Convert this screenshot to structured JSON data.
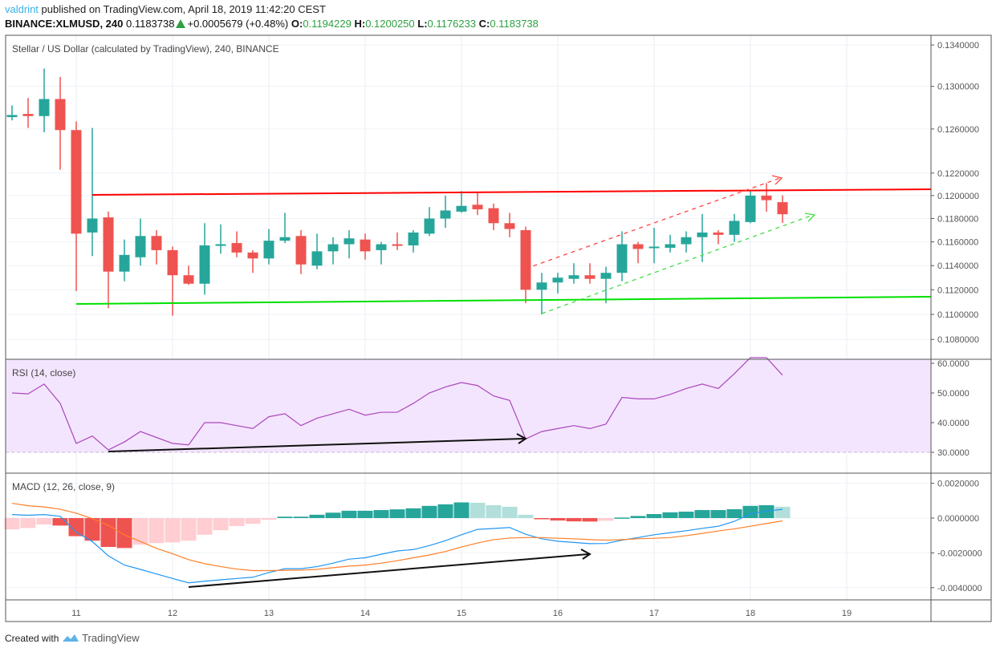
{
  "header": {
    "author": "valdrint",
    "published": "published on TradingView.com, April 18, 2019 11:42:20 CEST",
    "symbol": "BINANCE:XLMUSD, 240",
    "last": "0.1183738",
    "change": "+0.0005679 (+0.48%)",
    "o_label": "O:",
    "o": "0.1194229",
    "h_label": "H:",
    "h": "0.1200250",
    "l_label": "L:",
    "l": "0.1176233",
    "c_label": "C:",
    "c": "0.1183738"
  },
  "price_pane": {
    "title": "Stellar / US Dollar (calculated by TradingView), 240, BINANCE"
  },
  "rsi_pane": {
    "title": "RSI (14, close)"
  },
  "macd_pane": {
    "title": "MACD (12, 26, close, 9)"
  },
  "footer": {
    "created": "Created with",
    "brand": "TradingView"
  },
  "colors": {
    "up": "#26a69a",
    "down": "#ef5350",
    "up_light": "#b2dfdb",
    "down_light": "#ffcdd2",
    "resistance": "#ff0000",
    "support": "#00e000",
    "rsi": "#ab47bc",
    "rsi_band": "#f3e5fd",
    "macd": "#2196f3",
    "signal": "#ff7f27"
  },
  "chart_data": [
    {
      "type": "candlestick",
      "title": "Stellar / US Dollar (calculated by TradingView), 240, BINANCE",
      "scale": "log",
      "interval_hours": 4,
      "x_tick_labels": [
        "11",
        "12",
        "13",
        "14",
        "15",
        "16",
        "17",
        "18",
        "19"
      ],
      "y_tick_labels": [
        "0.1340000",
        "0.1300000",
        "0.1260000",
        "0.1220000",
        "0.1200000",
        "0.1180000",
        "0.1160000",
        "0.1140000",
        "0.1120000",
        "0.1100000",
        "0.1080000"
      ],
      "y_ticks": [
        0.134,
        0.13,
        0.126,
        0.122,
        0.12,
        0.118,
        0.116,
        0.114,
        0.112,
        0.11,
        0.108
      ],
      "ohlc": [
        [
          0.1271,
          0.1282,
          0.1268,
          0.1273
        ],
        [
          0.1274,
          0.1289,
          0.1261,
          0.1272
        ],
        [
          0.1272,
          0.1317,
          0.1257,
          0.1288
        ],
        [
          0.1288,
          0.1309,
          0.1223,
          0.1259
        ],
        [
          0.1259,
          0.1267,
          0.1119,
          0.1167
        ],
        [
          0.1168,
          0.1261,
          0.1148,
          0.118
        ],
        [
          0.1181,
          0.1186,
          0.1105,
          0.1135
        ],
        [
          0.1135,
          0.1162,
          0.1127,
          0.1149
        ],
        [
          0.1147,
          0.118,
          0.114,
          0.1165
        ],
        [
          0.1165,
          0.117,
          0.1141,
          0.1153
        ],
        [
          0.1153,
          0.1156,
          0.1099,
          0.1132
        ],
        [
          0.1132,
          0.114,
          0.1124,
          0.1125
        ],
        [
          0.1125,
          0.1176,
          0.1116,
          0.1157
        ],
        [
          0.1157,
          0.1175,
          0.115,
          0.1158
        ],
        [
          0.1159,
          0.1169,
          0.1147,
          0.1151
        ],
        [
          0.1151,
          0.1153,
          0.1134,
          0.1146
        ],
        [
          0.1146,
          0.1171,
          0.1141,
          0.1161
        ],
        [
          0.1161,
          0.1185,
          0.1159,
          0.1164
        ],
        [
          0.1165,
          0.117,
          0.1133,
          0.1141
        ],
        [
          0.114,
          0.1167,
          0.1137,
          0.1152
        ],
        [
          0.1152,
          0.1164,
          0.1141,
          0.1158
        ],
        [
          0.1158,
          0.117,
          0.1146,
          0.1163
        ],
        [
          0.1162,
          0.1167,
          0.1145,
          0.1152
        ],
        [
          0.1153,
          0.116,
          0.1141,
          0.1158
        ],
        [
          0.1158,
          0.1168,
          0.1153,
          0.1157
        ],
        [
          0.1157,
          0.117,
          0.1151,
          0.1168
        ],
        [
          0.1167,
          0.119,
          0.1165,
          0.118
        ],
        [
          0.118,
          0.12,
          0.1172,
          0.1187
        ],
        [
          0.1186,
          0.1204,
          0.1185,
          0.1191
        ],
        [
          0.1192,
          0.1203,
          0.1183,
          0.1188
        ],
        [
          0.1189,
          0.1193,
          0.117,
          0.1176
        ],
        [
          0.1176,
          0.1185,
          0.1164,
          0.1171
        ],
        [
          0.117,
          0.1173,
          0.1109,
          0.112
        ],
        [
          0.112,
          0.1134,
          0.11,
          0.1126
        ],
        [
          0.1126,
          0.1134,
          0.1117,
          0.113
        ],
        [
          0.1129,
          0.1142,
          0.1125,
          0.1132
        ],
        [
          0.1132,
          0.1142,
          0.1125,
          0.1129
        ],
        [
          0.1129,
          0.1139,
          0.1109,
          0.1134
        ],
        [
          0.1134,
          0.1169,
          0.1127,
          0.1158
        ],
        [
          0.1158,
          0.116,
          0.1142,
          0.1154
        ],
        [
          0.1155,
          0.1172,
          0.1142,
          0.1156
        ],
        [
          0.1155,
          0.1166,
          0.1151,
          0.1158
        ],
        [
          0.1158,
          0.1169,
          0.1151,
          0.1164
        ],
        [
          0.1164,
          0.1184,
          0.1143,
          0.1168
        ],
        [
          0.1168,
          0.117,
          0.1158,
          0.1166
        ],
        [
          0.1166,
          0.1184,
          0.116,
          0.1178
        ],
        [
          0.1177,
          0.1204,
          0.1176,
          0.12
        ],
        [
          0.12,
          0.1211,
          0.1186,
          0.1196
        ],
        [
          0.1194229,
          0.120025,
          0.1176233,
          0.1183738
        ]
      ],
      "annotations": {
        "resistance_line": [
          0.12,
          0.1205
        ],
        "support_line": [
          0.1108,
          0.1114
        ],
        "rising_channel_upper_dashed": [
          0.1137,
          0.1213
        ],
        "rising_channel_lower_dashed": [
          0.11,
          0.1183
        ]
      }
    },
    {
      "type": "line",
      "title": "RSI (14, close)",
      "y_tick_labels": [
        "60.0000",
        "50.0000",
        "40.0000",
        "30.0000"
      ],
      "y_ticks": [
        60,
        50,
        40,
        30
      ],
      "band": [
        30,
        70
      ],
      "values": [
        50,
        49.7,
        53,
        46.5,
        33,
        35.5,
        30.8,
        33.5,
        37,
        35,
        33,
        32.5,
        40,
        40,
        39,
        38,
        42,
        43,
        39,
        41.5,
        43,
        44.5,
        42.5,
        43.5,
        43.5,
        46.5,
        50,
        52,
        53.5,
        52.5,
        49,
        47.5,
        34.5,
        37,
        38,
        39,
        38,
        39.5,
        48.5,
        48,
        48,
        49.5,
        51.5,
        53,
        51.5,
        56.5,
        63,
        63,
        56
      ],
      "annotations": {
        "divergence_arrow": [
          30.8,
          35.2
        ]
      }
    },
    {
      "type": "bar+line",
      "title": "MACD (12, 26, close, 9)",
      "y_tick_labels": [
        "0.0020000",
        "0.0000000",
        "-0.0020000",
        "-0.0040000"
      ],
      "y_ticks": [
        0.002,
        0,
        -0.002,
        -0.004
      ],
      "histogram": [
        -0.00065,
        -0.00057,
        -0.00037,
        -0.00043,
        -0.00104,
        -0.0013,
        -0.00166,
        -0.00172,
        -0.00153,
        -0.00144,
        -0.0014,
        -0.0013,
        -0.00096,
        -0.0007,
        -0.00046,
        -0.00033,
        -0.0001,
        8e-05,
        8e-05,
        0.00019,
        0.00031,
        0.00042,
        0.00042,
        0.00046,
        0.0005,
        0.00056,
        0.0007,
        0.00079,
        0.0009,
        0.00088,
        0.00074,
        0.00065,
        0.00019,
        -4e-05,
        -0.00014,
        -0.00019,
        -0.0002,
        -0.00016,
        3e-05,
        0.00012,
        0.00023,
        0.00033,
        0.00037,
        0.00046,
        0.00046,
        0.00051,
        0.0007,
        0.00074,
        0.00065
      ],
      "macd": [
        0.0002,
        0.00016,
        0.0002,
        0.0001,
        -0.00081,
        -0.00135,
        -0.00217,
        -0.0027,
        -0.00295,
        -0.00321,
        -0.00347,
        -0.00372,
        -0.00363,
        -0.00355,
        -0.00347,
        -0.0034,
        -0.00313,
        -0.00291,
        -0.00291,
        -0.00279,
        -0.00259,
        -0.00236,
        -0.00228,
        -0.00208,
        -0.00189,
        -0.00181,
        -0.00158,
        -0.0013,
        -0.00096,
        -0.00065,
        -0.0006,
        -0.00054,
        -0.00093,
        -0.00119,
        -0.00133,
        -0.0014,
        -0.00147,
        -0.00146,
        -0.00127,
        -0.00112,
        -0.00096,
        -0.00084,
        -0.00073,
        -0.00059,
        -0.00047,
        -0.00019,
        0.00025,
        0.0004,
        0.0005
      ],
      "signal": [
        0.00085,
        0.00071,
        0.00064,
        0.00051,
        0.00028,
        -3e-05,
        -0.00042,
        -0.00096,
        -0.00135,
        -0.00174,
        -0.00205,
        -0.00239,
        -0.00262,
        -0.00279,
        -0.00293,
        -0.00302,
        -0.00302,
        -0.003,
        -0.00299,
        -0.00295,
        -0.00285,
        -0.00276,
        -0.0027,
        -0.00259,
        -0.00245,
        -0.00228,
        -0.00212,
        -0.00192,
        -0.00166,
        -0.00143,
        -0.00124,
        -0.00115,
        -0.00112,
        -0.00112,
        -0.00116,
        -0.00119,
        -0.00124,
        -0.00127,
        -0.00124,
        -0.00119,
        -0.00116,
        -0.00112,
        -0.00101,
        -0.00088,
        -0.00074,
        -0.00062,
        -0.00047,
        -0.00031,
        -0.00016
      ],
      "annotations": {
        "divergence_arrow": [
          -0.004,
          -0.002
        ]
      }
    }
  ]
}
